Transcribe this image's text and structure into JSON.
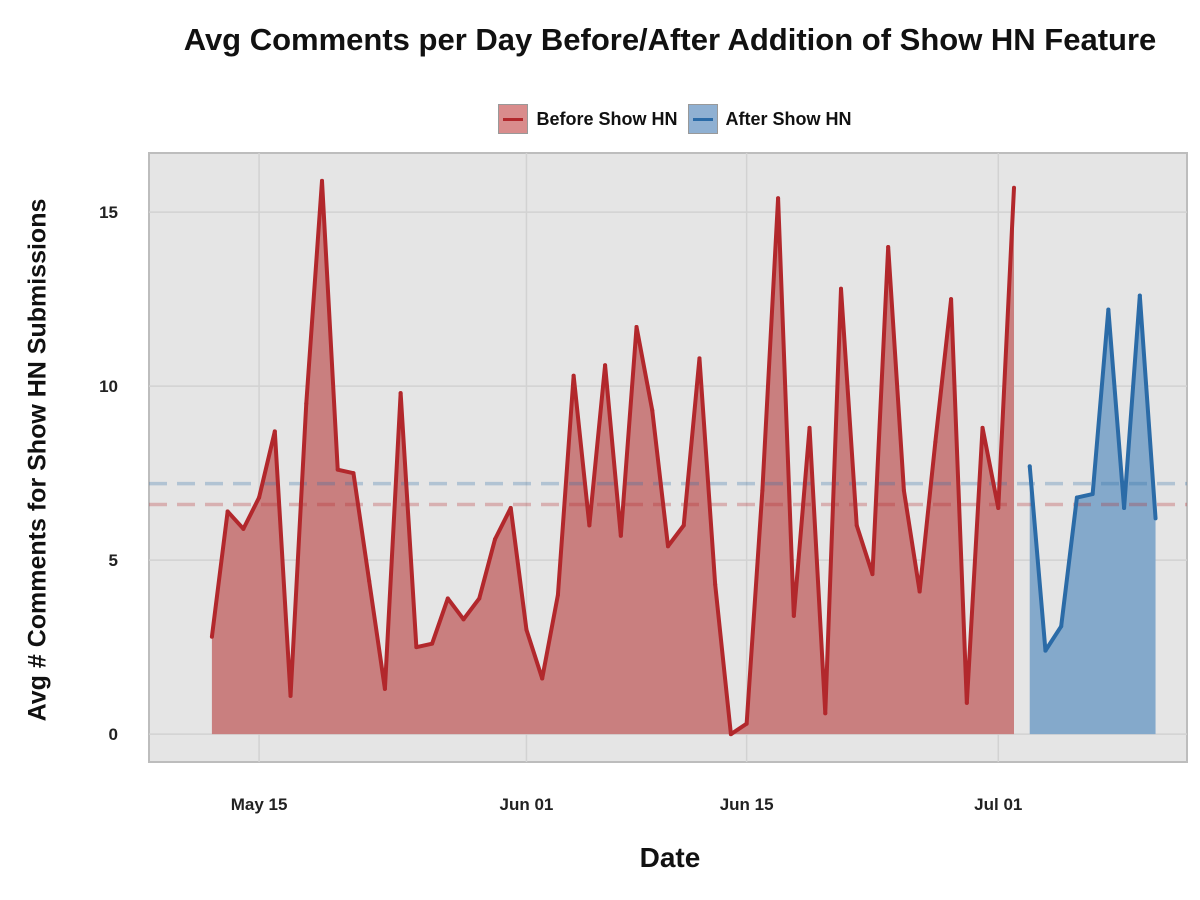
{
  "chart_data": {
    "type": "area",
    "title": "Avg Comments per Day Before/After Addition of Show HN Feature",
    "xlabel": "Date",
    "ylabel": "Avg # Comments for Show HN Submissions",
    "x_ticks": [
      "May 15",
      "Jun 01",
      "Jun 15",
      "Jul 01"
    ],
    "x_tick_dates": [
      "2015-05-15",
      "2015-06-01",
      "2015-06-15",
      "2015-07-01"
    ],
    "y_ticks": [
      0,
      5,
      10,
      15
    ],
    "xlim": [
      "2015-05-08",
      "2015-07-13"
    ],
    "ylim": [
      -0.8,
      16.7
    ],
    "grid": true,
    "legend_position": "top",
    "series": [
      {
        "name": "Before Show HN",
        "color": "#b2282c",
        "fill": "#c97f7f",
        "mean_line": 6.6,
        "points": [
          [
            "2015-05-12",
            2.8
          ],
          [
            "2015-05-13",
            6.4
          ],
          [
            "2015-05-14",
            5.9
          ],
          [
            "2015-05-15",
            6.8
          ],
          [
            "2015-05-16",
            8.7
          ],
          [
            "2015-05-17",
            1.1
          ],
          [
            "2015-05-18",
            9.5
          ],
          [
            "2015-05-19",
            15.9
          ],
          [
            "2015-05-20",
            7.6
          ],
          [
            "2015-05-21",
            7.5
          ],
          [
            "2015-05-22",
            4.4
          ],
          [
            "2015-05-23",
            1.3
          ],
          [
            "2015-05-24",
            9.8
          ],
          [
            "2015-05-25",
            2.5
          ],
          [
            "2015-05-26",
            2.6
          ],
          [
            "2015-05-27",
            3.9
          ],
          [
            "2015-05-28",
            3.3
          ],
          [
            "2015-05-29",
            3.9
          ],
          [
            "2015-05-30",
            5.6
          ],
          [
            "2015-05-31",
            6.5
          ],
          [
            "2015-06-01",
            3.0
          ],
          [
            "2015-06-02",
            1.6
          ],
          [
            "2015-06-03",
            4.0
          ],
          [
            "2015-06-04",
            10.3
          ],
          [
            "2015-06-05",
            6.0
          ],
          [
            "2015-06-06",
            10.6
          ],
          [
            "2015-06-07",
            5.7
          ],
          [
            "2015-06-08",
            11.7
          ],
          [
            "2015-06-09",
            9.3
          ],
          [
            "2015-06-10",
            5.4
          ],
          [
            "2015-06-11",
            6.0
          ],
          [
            "2015-06-12",
            10.8
          ],
          [
            "2015-06-13",
            4.3
          ],
          [
            "2015-06-14",
            0.0
          ],
          [
            "2015-06-15",
            0.3
          ],
          [
            "2015-06-16",
            7.0
          ],
          [
            "2015-06-17",
            15.4
          ],
          [
            "2015-06-18",
            3.4
          ],
          [
            "2015-06-19",
            8.8
          ],
          [
            "2015-06-20",
            0.6
          ],
          [
            "2015-06-21",
            12.8
          ],
          [
            "2015-06-22",
            6.0
          ],
          [
            "2015-06-23",
            4.6
          ],
          [
            "2015-06-24",
            14.0
          ],
          [
            "2015-06-25",
            7.0
          ],
          [
            "2015-06-26",
            4.1
          ],
          [
            "2015-06-27",
            8.4
          ],
          [
            "2015-06-28",
            12.5
          ],
          [
            "2015-06-29",
            0.9
          ],
          [
            "2015-06-30",
            8.8
          ],
          [
            "2015-07-01",
            6.5
          ],
          [
            "2015-07-02",
            15.7
          ]
        ]
      },
      {
        "name": "After Show HN",
        "color": "#2b6ba7",
        "fill": "#84a9cb",
        "mean_line": 7.2,
        "points": [
          [
            "2015-07-03",
            7.7
          ],
          [
            "2015-07-04",
            2.4
          ],
          [
            "2015-07-05",
            3.1
          ],
          [
            "2015-07-06",
            6.8
          ],
          [
            "2015-07-07",
            6.9
          ],
          [
            "2015-07-08",
            12.2
          ],
          [
            "2015-07-09",
            6.5
          ],
          [
            "2015-07-10",
            12.6
          ],
          [
            "2015-07-11",
            6.2
          ]
        ]
      }
    ]
  }
}
